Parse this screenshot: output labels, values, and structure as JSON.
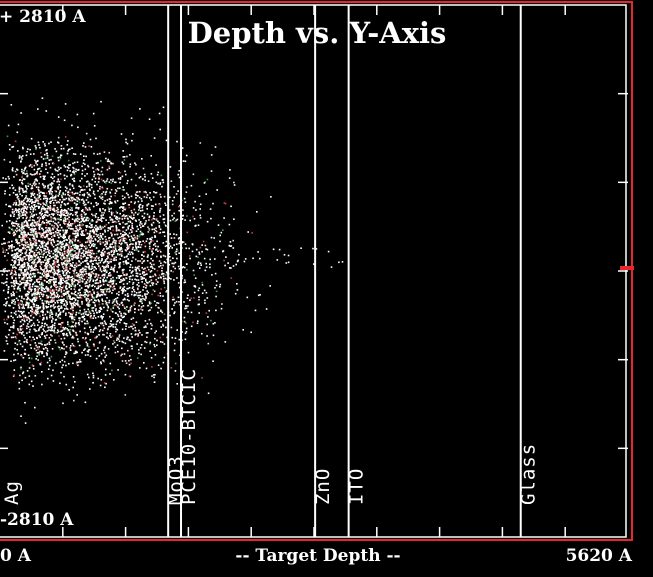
{
  "chart_data": {
    "type": "scatter",
    "title": "Depth vs. Y-Axis",
    "xlabel": "-- Target Depth --",
    "x_min_label": "0 A",
    "x_max_label": "5620 A",
    "y_max_label": "+ 2810 A",
    "y_min_label": "-2810 A",
    "xlim": [
      0,
      5620
    ],
    "ylim": [
      -2810,
      2810
    ],
    "frame_color": "#e8262b",
    "point_colors": [
      "#ffffff",
      "#ffd0c8",
      "#c83a3a",
      "#3a9a3a"
    ],
    "grid": false,
    "layers": [
      {
        "name": "Ag",
        "boundary": 0
      },
      {
        "name": "MoO3",
        "boundary": 1505
      },
      {
        "name": "PCE10-BTCIC",
        "boundary": 1620
      },
      {
        "name": "ZnO",
        "boundary": 2820
      },
      {
        "name": "ITO",
        "boundary": 3120
      },
      {
        "name": "Glass",
        "boundary": 4660
      }
    ],
    "ion_cloud": {
      "center_x": 0,
      "center_y": 150,
      "spread_x": 1400,
      "spread_y": 1100,
      "max_x": 3100
    }
  }
}
